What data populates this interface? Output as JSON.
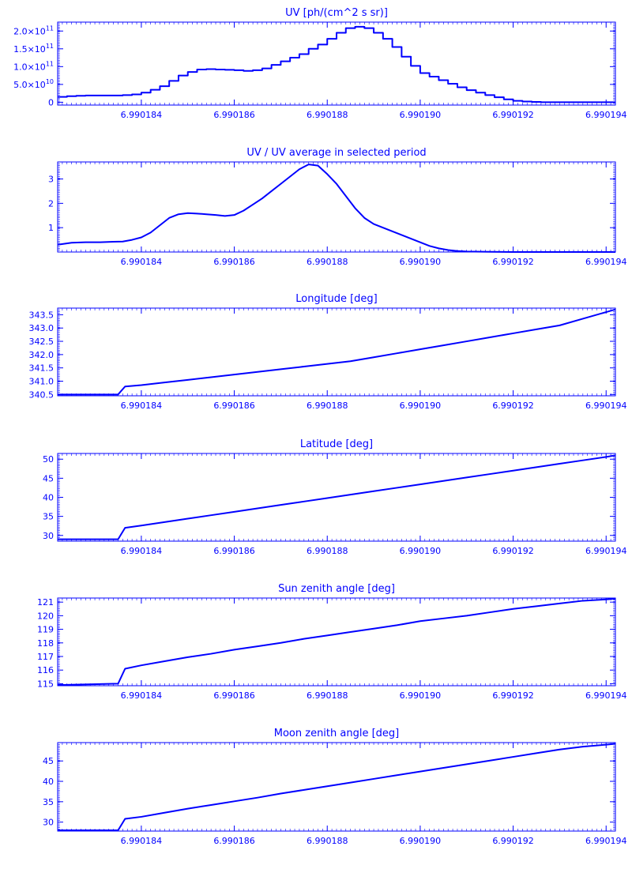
{
  "colors": {
    "ink": "#0000ff",
    "background": "#ffffff"
  },
  "chart_data": [
    {
      "type": "line",
      "title": "UV [ph/(cm^2 s sr)]",
      "step": true,
      "xlim": [
        6.9901822,
        6.9901942
      ],
      "xticks": [
        6.990184,
        6.990186,
        6.990188,
        6.99019,
        6.990192,
        6.990194
      ],
      "xtick_labels": [
        "6.990184",
        "6.990186",
        "6.990188",
        "6.990190",
        "6.990192",
        "6.990194"
      ],
      "ylim": [
        -8000000000.0,
        225000000000.0
      ],
      "yticks": [
        0,
        50000000000.0,
        100000000000.0,
        150000000000.0,
        200000000000.0
      ],
      "ytick_labels": [
        {
          "base": "0",
          "exp": ""
        },
        {
          "base": "5.0×10",
          "exp": "10"
        },
        {
          "base": "1.0×10",
          "exp": "11"
        },
        {
          "base": "1.5×10",
          "exp": "11"
        },
        {
          "base": "2.0×10",
          "exp": "11"
        }
      ],
      "series": [
        {
          "x": [
            6.9901822,
            6.9901824,
            6.9901826,
            6.9901828,
            6.990183,
            6.9901832,
            6.9901834,
            6.9901836,
            6.9901838,
            6.990184,
            6.9901842,
            6.9901844,
            6.9901846,
            6.9901848,
            6.990185,
            6.9901852,
            6.9901854,
            6.9901856,
            6.9901858,
            6.990186,
            6.9901862,
            6.9901864,
            6.9901866,
            6.9901868,
            6.990187,
            6.9901872,
            6.9901874,
            6.9901876,
            6.9901878,
            6.990188,
            6.9901882,
            6.9901884,
            6.9901886,
            6.9901888,
            6.990189,
            6.9901892,
            6.9901894,
            6.9901896,
            6.9901898,
            6.99019,
            6.9901902,
            6.9901904,
            6.9901906,
            6.9901908,
            6.990191,
            6.9901912,
            6.9901914,
            6.9901916,
            6.9901918,
            6.990192,
            6.9901922,
            6.9901924,
            6.9901926,
            6.9901928,
            6.990193,
            6.9901932,
            6.9901934,
            6.9901936,
            6.9901938,
            6.990194,
            6.9901942
          ],
          "y": [
            15000000000.0,
            17000000000.0,
            18000000000.0,
            19000000000.0,
            19000000000.0,
            19000000000.0,
            19000000000.0,
            20000000000.0,
            22000000000.0,
            27000000000.0,
            35000000000.0,
            45000000000.0,
            60000000000.0,
            75000000000.0,
            85000000000.0,
            92000000000.0,
            93000000000.0,
            92000000000.0,
            91000000000.0,
            90000000000.0,
            88000000000.0,
            90000000000.0,
            95000000000.0,
            105000000000.0,
            115000000000.0,
            125000000000.0,
            135000000000.0,
            150000000000.0,
            162000000000.0,
            178000000000.0,
            195000000000.0,
            208000000000.0,
            212000000000.0,
            208000000000.0,
            195000000000.0,
            178000000000.0,
            155000000000.0,
            128000000000.0,
            102000000000.0,
            82000000000.0,
            72000000000.0,
            62000000000.0,
            52000000000.0,
            42000000000.0,
            34000000000.0,
            27000000000.0,
            20000000000.0,
            14000000000.0,
            8000000000.0,
            4000000000.0,
            2000000000.0,
            1000000000.0,
            0,
            0,
            0,
            0,
            0,
            0,
            0,
            0,
            0
          ]
        }
      ]
    },
    {
      "type": "line",
      "title": "UV / UV average in selected period",
      "xlim": [
        6.9901822,
        6.9901942
      ],
      "xticks": [
        6.990184,
        6.990186,
        6.990188,
        6.99019,
        6.990192,
        6.990194
      ],
      "xtick_labels": [
        "6.990184",
        "6.990186",
        "6.990188",
        "6.990190",
        "6.990192",
        "6.990194"
      ],
      "ylim": [
        0,
        3.7
      ],
      "yticks": [
        1,
        2,
        3
      ],
      "ytick_labels": [
        "1",
        "2",
        "3"
      ],
      "series": [
        {
          "x": [
            6.9901822,
            6.9901825,
            6.9901828,
            6.9901831,
            6.9901834,
            6.9901836,
            6.9901838,
            6.990184,
            6.9901842,
            6.9901844,
            6.9901846,
            6.9901848,
            6.990185,
            6.9901852,
            6.9901854,
            6.9901856,
            6.9901858,
            6.990186,
            6.9901862,
            6.9901864,
            6.9901866,
            6.9901868,
            6.990187,
            6.9901872,
            6.9901874,
            6.9901876,
            6.9901878,
            6.990188,
            6.9901882,
            6.9901884,
            6.9901886,
            6.9901888,
            6.990189,
            6.9901892,
            6.9901894,
            6.9901896,
            6.9901898,
            6.99019,
            6.9901902,
            6.9901904,
            6.9901906,
            6.9901908,
            6.990191,
            6.9901915,
            6.990192,
            6.9901925,
            6.990193,
            6.9901935,
            6.990194,
            6.9901942
          ],
          "y": [
            0.3,
            0.38,
            0.4,
            0.4,
            0.42,
            0.43,
            0.5,
            0.6,
            0.8,
            1.1,
            1.4,
            1.55,
            1.6,
            1.58,
            1.55,
            1.52,
            1.48,
            1.52,
            1.7,
            1.95,
            2.2,
            2.5,
            2.8,
            3.1,
            3.4,
            3.6,
            3.55,
            3.2,
            2.8,
            2.3,
            1.8,
            1.4,
            1.15,
            1.0,
            0.85,
            0.7,
            0.55,
            0.4,
            0.25,
            0.15,
            0.08,
            0.04,
            0.02,
            0.01,
            0,
            0,
            0,
            0,
            0,
            0
          ]
        }
      ]
    },
    {
      "type": "line",
      "title": "Longitude [deg]",
      "xlim": [
        6.9901822,
        6.9901942
      ],
      "xticks": [
        6.990184,
        6.990186,
        6.990188,
        6.99019,
        6.990192,
        6.990194
      ],
      "xtick_labels": [
        "6.990184",
        "6.990186",
        "6.990188",
        "6.990190",
        "6.990192",
        "6.990194"
      ],
      "ylim": [
        340.45,
        343.75
      ],
      "yticks": [
        340.5,
        341.0,
        341.5,
        342.0,
        342.5,
        343.0,
        343.5
      ],
      "ytick_labels": [
        "340.5",
        "341.0",
        "341.5",
        "342.0",
        "342.5",
        "343.0",
        "343.5"
      ],
      "series": [
        {
          "x": [
            6.9901822,
            6.9901835,
            6.99018365,
            6.990184,
            6.9901845,
            6.990185,
            6.9901855,
            6.990186,
            6.9901865,
            6.990187,
            6.9901875,
            6.990188,
            6.9901885,
            6.990189,
            6.9901895,
            6.99019,
            6.9901905,
            6.990191,
            6.9901915,
            6.990192,
            6.9901925,
            6.990193,
            6.9901935,
            6.990194,
            6.9901942
          ],
          "y": [
            340.5,
            340.5,
            340.8,
            340.85,
            340.95,
            341.05,
            341.15,
            341.25,
            341.35,
            341.45,
            341.55,
            341.65,
            341.75,
            341.9,
            342.05,
            342.2,
            342.35,
            342.5,
            342.65,
            342.8,
            342.95,
            343.1,
            343.35,
            343.6,
            343.7
          ]
        }
      ]
    },
    {
      "type": "line",
      "title": "Latitude [deg]",
      "xlim": [
        6.9901822,
        6.9901942
      ],
      "xticks": [
        6.990184,
        6.990186,
        6.990188,
        6.99019,
        6.990192,
        6.990194
      ],
      "xtick_labels": [
        "6.990184",
        "6.990186",
        "6.990188",
        "6.990190",
        "6.990192",
        "6.990194"
      ],
      "ylim": [
        28.5,
        51.5
      ],
      "yticks": [
        30,
        35,
        40,
        45,
        50
      ],
      "ytick_labels": [
        "30",
        "35",
        "40",
        "45",
        "50"
      ],
      "series": [
        {
          "x": [
            6.9901822,
            6.9901835,
            6.99018365,
            6.990184,
            6.9901845,
            6.990185,
            6.9901855,
            6.990186,
            6.9901865,
            6.990187,
            6.9901875,
            6.990188,
            6.9901885,
            6.990189,
            6.9901895,
            6.99019,
            6.9901905,
            6.990191,
            6.9901915,
            6.990192,
            6.9901925,
            6.990193,
            6.9901935,
            6.990194,
            6.9901942
          ],
          "y": [
            29,
            29,
            32,
            32.6,
            33.5,
            34.4,
            35.3,
            36.2,
            37.1,
            38.0,
            38.9,
            39.8,
            40.7,
            41.6,
            42.5,
            43.4,
            44.3,
            45.2,
            46.1,
            47.0,
            47.9,
            48.8,
            49.7,
            50.6,
            51
          ]
        }
      ]
    },
    {
      "type": "line",
      "title": "Sun zenith angle [deg]",
      "xlim": [
        6.9901822,
        6.9901942
      ],
      "xticks": [
        6.990184,
        6.990186,
        6.990188,
        6.99019,
        6.990192,
        6.990194
      ],
      "xtick_labels": [
        "6.990184",
        "6.990186",
        "6.990188",
        "6.990190",
        "6.990192",
        "6.990194"
      ],
      "ylim": [
        114.85,
        121.3
      ],
      "yticks": [
        115,
        116,
        117,
        118,
        119,
        120,
        121
      ],
      "ytick_labels": [
        "115",
        "116",
        "117",
        "118",
        "119",
        "120",
        "121"
      ],
      "series": [
        {
          "x": [
            6.9901822,
            6.9901835,
            6.99018365,
            6.990184,
            6.9901845,
            6.990185,
            6.9901855,
            6.990186,
            6.9901865,
            6.990187,
            6.9901875,
            6.990188,
            6.9901885,
            6.990189,
            6.9901895,
            6.99019,
            6.9901905,
            6.990191,
            6.9901915,
            6.990192,
            6.9901925,
            6.990193,
            6.9901935,
            6.990194,
            6.9901942
          ],
          "y": [
            114.9,
            115.0,
            116.1,
            116.35,
            116.65,
            116.95,
            117.2,
            117.5,
            117.75,
            118.0,
            118.3,
            118.55,
            118.8,
            119.05,
            119.3,
            119.6,
            119.8,
            120.0,
            120.25,
            120.5,
            120.7,
            120.9,
            121.1,
            121.2,
            121.25
          ]
        }
      ]
    },
    {
      "type": "line",
      "title": "Moon zenith angle [deg]",
      "xlim": [
        6.9901822,
        6.9901942
      ],
      "xticks": [
        6.990184,
        6.990186,
        6.990188,
        6.99019,
        6.990192,
        6.990194
      ],
      "xtick_labels": [
        "6.990184",
        "6.990186",
        "6.990188",
        "6.990190",
        "6.990192",
        "6.990194"
      ],
      "ylim": [
        27.8,
        49.5
      ],
      "yticks": [
        30,
        35,
        40,
        45
      ],
      "ytick_labels": [
        "30",
        "35",
        "40",
        "45"
      ],
      "series": [
        {
          "x": [
            6.9901822,
            6.9901835,
            6.99018365,
            6.990184,
            6.9901845,
            6.990185,
            6.9901855,
            6.990186,
            6.9901865,
            6.990187,
            6.9901875,
            6.990188,
            6.9901885,
            6.990189,
            6.9901895,
            6.99019,
            6.9901905,
            6.990191,
            6.9901915,
            6.990192,
            6.9901925,
            6.990193,
            6.9901935,
            6.990194,
            6.9901942
          ],
          "y": [
            28,
            28,
            30.8,
            31.3,
            32.3,
            33.3,
            34.2,
            35.1,
            36.0,
            37.0,
            37.9,
            38.8,
            39.7,
            40.6,
            41.5,
            42.4,
            43.3,
            44.2,
            45.1,
            46.0,
            46.9,
            47.8,
            48.5,
            49.0,
            49.2
          ]
        }
      ]
    }
  ]
}
